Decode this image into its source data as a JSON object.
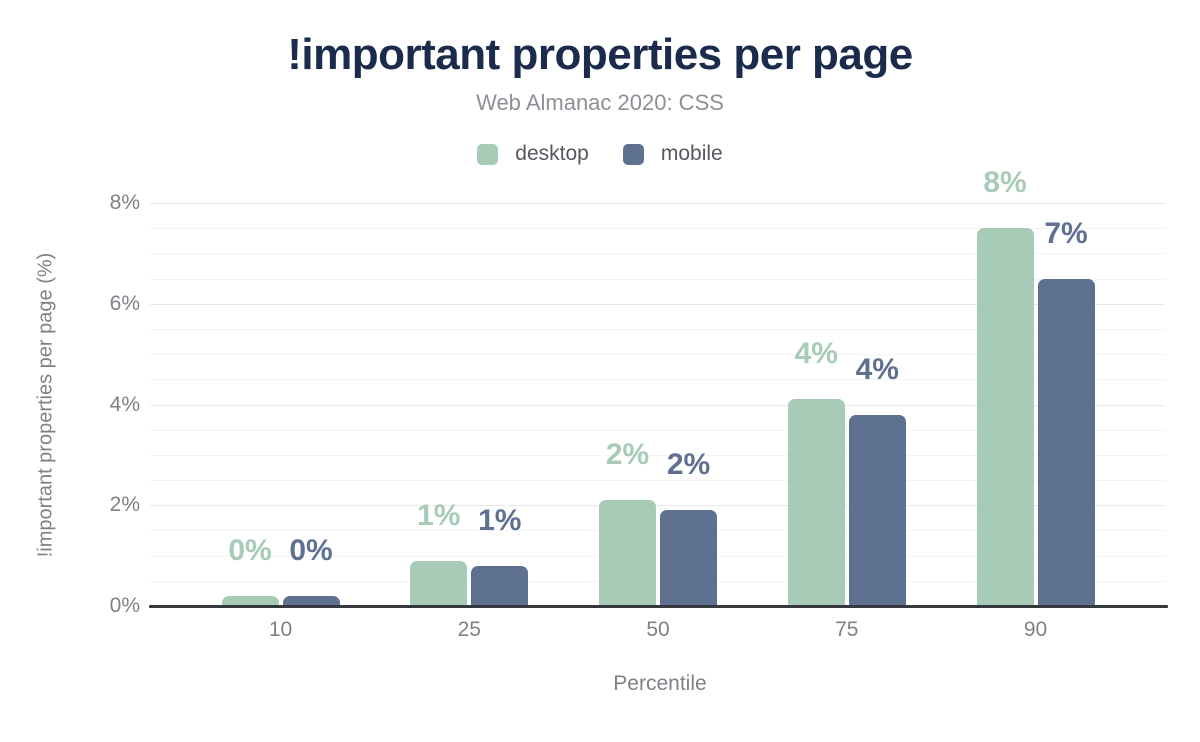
{
  "figure": {
    "title": "!important properties per page",
    "subtitle": "Web Almanac 2020: CSS"
  },
  "legend": {
    "items": [
      {
        "label": "desktop",
        "color": "#a8cbb7"
      },
      {
        "label": "mobile",
        "color": "#5e7191"
      }
    ]
  },
  "chart_data": {
    "type": "bar",
    "title": "!important properties per page",
    "subtitle": "Web Almanac 2020: CSS",
    "categories": [
      "10",
      "25",
      "50",
      "75",
      "90"
    ],
    "series": [
      {
        "name": "desktop",
        "color": "#a8cbb7",
        "values": [
          0.2,
          0.9,
          2.1,
          4.1,
          7.5
        ],
        "labels": [
          "0%",
          "1%",
          "2%",
          "4%",
          "8%"
        ]
      },
      {
        "name": "mobile",
        "color": "#5e7191",
        "values": [
          0.2,
          0.8,
          1.9,
          3.8,
          6.5
        ],
        "labels": [
          "0%",
          "1%",
          "2%",
          "4%",
          "7%"
        ]
      }
    ],
    "xlabel": "Percentile",
    "ylabel": "!important properties per page (%)",
    "ylim": [
      0,
      8
    ],
    "y_ticks": [
      "0%",
      "2%",
      "4%",
      "6%",
      "8%"
    ],
    "y_tick_values": [
      0,
      2,
      4,
      6,
      8
    ],
    "minor_grid_step": 0.5,
    "grid": "on",
    "legend_position": "top"
  },
  "colors": {
    "background": "#ffffff",
    "title_text": "#1a2b4c",
    "subtitle_text": "#8b9097",
    "legend_text": "#54585f",
    "axis_text": "#7d8287",
    "baseline": "#35383c",
    "grid_minor": "#f3f4f5",
    "grid_major": "#e7e9eb"
  }
}
